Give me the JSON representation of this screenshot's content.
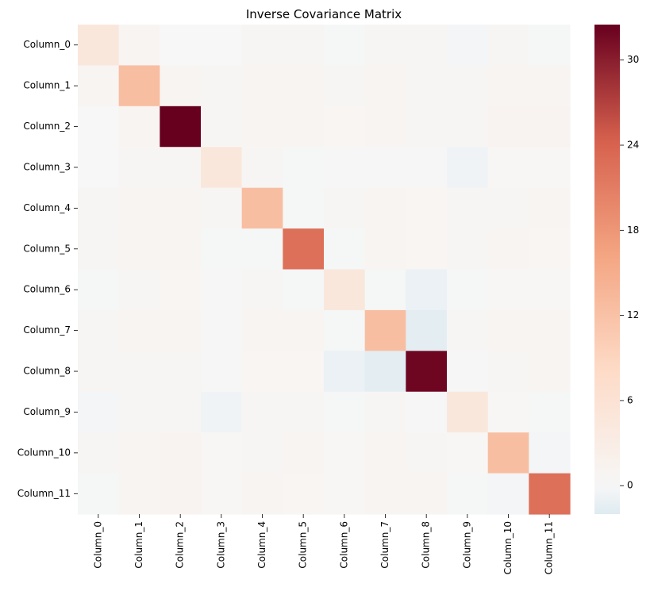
{
  "chart_data": {
    "type": "heatmap",
    "title": "Inverse Covariance Matrix",
    "xlabel": "",
    "ylabel": "",
    "row_labels": [
      "Column_0",
      "Column_1",
      "Column_2",
      "Column_3",
      "Column_4",
      "Column_5",
      "Column_6",
      "Column_7",
      "Column_8",
      "Column_9",
      "Column_10",
      "Column_11"
    ],
    "col_labels": [
      "Column_0",
      "Column_1",
      "Column_2",
      "Column_3",
      "Column_4",
      "Column_5",
      "Column_6",
      "Column_7",
      "Column_8",
      "Column_9",
      "Column_10",
      "Column_11"
    ],
    "values": [
      [
        4.5,
        0.8,
        0.0,
        0.0,
        0.5,
        0.6,
        -0.2,
        0.6,
        0.5,
        -0.3,
        0.5,
        -0.2
      ],
      [
        0.8,
        12.5,
        1.0,
        0.5,
        0.9,
        1.0,
        0.6,
        0.8,
        0.6,
        0.5,
        1.0,
        1.0
      ],
      [
        0.0,
        1.0,
        32.5,
        0.5,
        0.9,
        1.0,
        0.7,
        0.9,
        0.5,
        0.5,
        1.2,
        1.1
      ],
      [
        0.0,
        0.5,
        0.5,
        4.5,
        0.6,
        -0.2,
        -0.1,
        -0.1,
        0.2,
        -0.6,
        0.4,
        0.4
      ],
      [
        0.5,
        0.9,
        0.9,
        0.6,
        12.5,
        -0.2,
        0.6,
        0.9,
        0.7,
        0.6,
        0.6,
        0.8
      ],
      [
        0.6,
        1.0,
        1.0,
        -0.2,
        -0.2,
        22.5,
        -0.2,
        0.8,
        0.7,
        0.6,
        0.9,
        0.7
      ],
      [
        -0.2,
        0.6,
        0.7,
        -0.1,
        0.6,
        -0.2,
        4.5,
        -0.2,
        -1.0,
        -0.2,
        0.3,
        0.3
      ],
      [
        0.6,
        0.8,
        0.9,
        -0.1,
        0.9,
        0.8,
        -0.2,
        12.5,
        -1.5,
        0.5,
        0.8,
        0.8
      ],
      [
        0.5,
        0.6,
        0.5,
        0.2,
        0.7,
        0.7,
        -1.0,
        -1.5,
        32.0,
        -0.1,
        0.6,
        0.8
      ],
      [
        -0.3,
        0.5,
        0.5,
        -0.6,
        0.6,
        0.6,
        -0.2,
        0.5,
        -0.1,
        4.5,
        0.3,
        -0.2
      ],
      [
        0.5,
        1.0,
        1.2,
        0.4,
        0.6,
        0.9,
        0.3,
        0.8,
        0.6,
        0.3,
        12.5,
        -0.3
      ],
      [
        -0.2,
        1.0,
        1.1,
        0.4,
        0.8,
        0.7,
        0.3,
        0.8,
        0.8,
        -0.2,
        -0.3,
        22.5
      ]
    ],
    "colorbar": {
      "colormap": "RdBu_r",
      "center": 0,
      "vmin": -2,
      "vmax": 32.5,
      "ticks": [
        0,
        6,
        12,
        18,
        24,
        30
      ],
      "tick_labels": [
        "0",
        "6",
        "12",
        "18",
        "24",
        "30"
      ]
    },
    "grid": false,
    "legend": "colorbar-right"
  }
}
